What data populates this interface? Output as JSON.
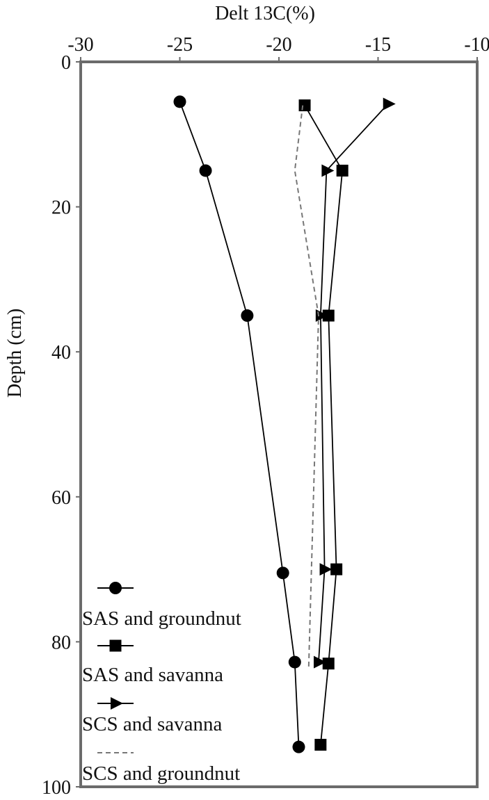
{
  "chart_data": {
    "type": "line",
    "orientation": "depth-profile",
    "xlabel": "Delt 13C(%)",
    "ylabel": "Depth (cm)",
    "x_axis_position": "top",
    "xlim": [
      -30,
      -10
    ],
    "ylim": [
      0,
      100
    ],
    "y_inverted": true,
    "xticks": [
      -30,
      -25,
      -20,
      -15,
      -10
    ],
    "yticks": [
      0,
      20,
      40,
      60,
      80,
      100
    ],
    "grid": false,
    "legend_position": "bottom-left",
    "series": [
      {
        "name": "SAS and groundnut",
        "marker": "circle",
        "line_style": "solid",
        "color": "#000000",
        "points": [
          {
            "x": -25.0,
            "y": 5.5
          },
          {
            "x": -23.7,
            "y": 15
          },
          {
            "x": -21.6,
            "y": 35
          },
          {
            "x": -19.8,
            "y": 70.5
          },
          {
            "x": -19.2,
            "y": 82.8
          },
          {
            "x": -19.0,
            "y": 94.5
          }
        ]
      },
      {
        "name": "SAS and savanna",
        "marker": "square",
        "line_style": "solid",
        "color": "#000000",
        "points": [
          {
            "x": -18.7,
            "y": 6
          },
          {
            "x": -16.8,
            "y": 15
          },
          {
            "x": -17.5,
            "y": 35
          },
          {
            "x": -17.1,
            "y": 70
          },
          {
            "x": -17.5,
            "y": 83
          },
          {
            "x": -17.9,
            "y": 94.2
          }
        ]
      },
      {
        "name": "SCS and savanna",
        "marker": "triangle-right",
        "line_style": "solid",
        "color": "#000000",
        "points": [
          {
            "x": -14.5,
            "y": 5.8
          },
          {
            "x": -17.6,
            "y": 15
          },
          {
            "x": -17.9,
            "y": 35
          },
          {
            "x": -17.7,
            "y": 70
          },
          {
            "x": -18.0,
            "y": 82.8
          }
        ]
      },
      {
        "name": "SCS and groundnut",
        "marker": "none",
        "line_style": "dashed",
        "color": "#777777",
        "points": [
          {
            "x": -18.8,
            "y": 6
          },
          {
            "x": -19.2,
            "y": 15
          },
          {
            "x": -18.0,
            "y": 35
          },
          {
            "x": -18.5,
            "y": 83.5
          }
        ]
      }
    ]
  }
}
